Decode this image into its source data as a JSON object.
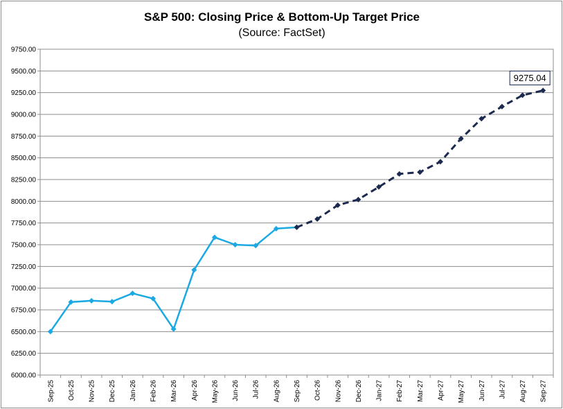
{
  "chart_data": {
    "type": "line",
    "title": "S&P 500: Closing Price & Bottom-Up Target Price",
    "subtitle": "(Source: FactSet)",
    "xlabel": "",
    "ylabel": "",
    "ylim": [
      6000,
      9750
    ],
    "y_ticks": [
      "6000.00",
      "6250.00",
      "6500.00",
      "6750.00",
      "7000.00",
      "7250.00",
      "7500.00",
      "7750.00",
      "8000.00",
      "8250.00",
      "8500.00",
      "8750.00",
      "9000.00",
      "9250.00",
      "9500.00",
      "9750.00"
    ],
    "categories": [
      "Sep-25",
      "Oct-25",
      "Nov-25",
      "Dec-25",
      "Jan-26",
      "Feb-26",
      "Mar-26",
      "Apr-26",
      "May-26",
      "Jun-26",
      "Jul-26",
      "Aug-26",
      "Sep-26",
      "Oct-26",
      "Nov-26",
      "Dec-26",
      "Jan-27",
      "Feb-27",
      "Mar-27",
      "Apr-27",
      "May-27",
      "Jun-27",
      "Jul-27",
      "Aug-27",
      "Sep-27"
    ],
    "grid": true,
    "legend": "none",
    "series": [
      {
        "style": "solid",
        "color": "#1ba9e4",
        "values": [
          6500,
          6840,
          6855,
          6845,
          6940,
          6880,
          6530,
          7210,
          7585,
          7500,
          7490,
          7685,
          7700,
          null,
          null,
          null,
          null,
          null,
          null,
          null,
          null,
          null,
          null,
          null,
          null
        ]
      },
      {
        "style": "dashed",
        "color": "#1b2a4e",
        "values": [
          null,
          null,
          null,
          null,
          null,
          null,
          null,
          null,
          null,
          null,
          null,
          null,
          7700,
          7795,
          7955,
          8020,
          8165,
          8315,
          8335,
          8455,
          8720,
          8950,
          9090,
          9220,
          9275.04
        ]
      }
    ],
    "annotations": [
      {
        "text": "9275.04",
        "category": "Sep-27",
        "value": 9275.04
      }
    ]
  }
}
